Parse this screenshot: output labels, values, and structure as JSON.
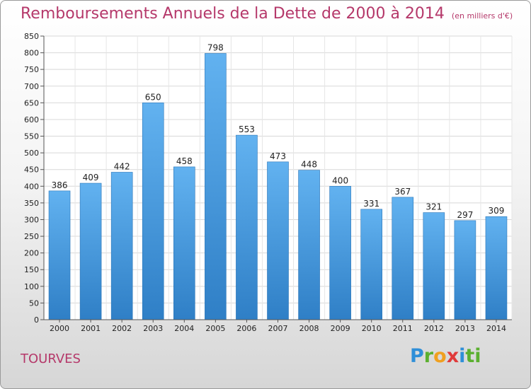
{
  "chart_data": {
    "type": "bar",
    "title": "Remboursements Annuels de la Dette de 2000 à 2014",
    "subtitle": "(en milliers d'€)",
    "categories": [
      "2000",
      "2001",
      "2002",
      "2003",
      "2004",
      "2005",
      "2006",
      "2007",
      "2008",
      "2009",
      "2010",
      "2011",
      "2012",
      "2013",
      "2014"
    ],
    "values": [
      386,
      409,
      442,
      650,
      458,
      798,
      553,
      473,
      448,
      400,
      331,
      367,
      321,
      297,
      309
    ],
    "ylim": [
      0,
      850
    ],
    "yticks": [
      0,
      50,
      100,
      150,
      200,
      250,
      300,
      350,
      400,
      450,
      500,
      550,
      600,
      650,
      700,
      750,
      800,
      850
    ],
    "grid": true,
    "bar_color": "#4a9ee0"
  },
  "footer": {
    "town": "TOURVES",
    "logo": [
      "P",
      "r",
      "o",
      "x",
      "i",
      "ti"
    ]
  }
}
